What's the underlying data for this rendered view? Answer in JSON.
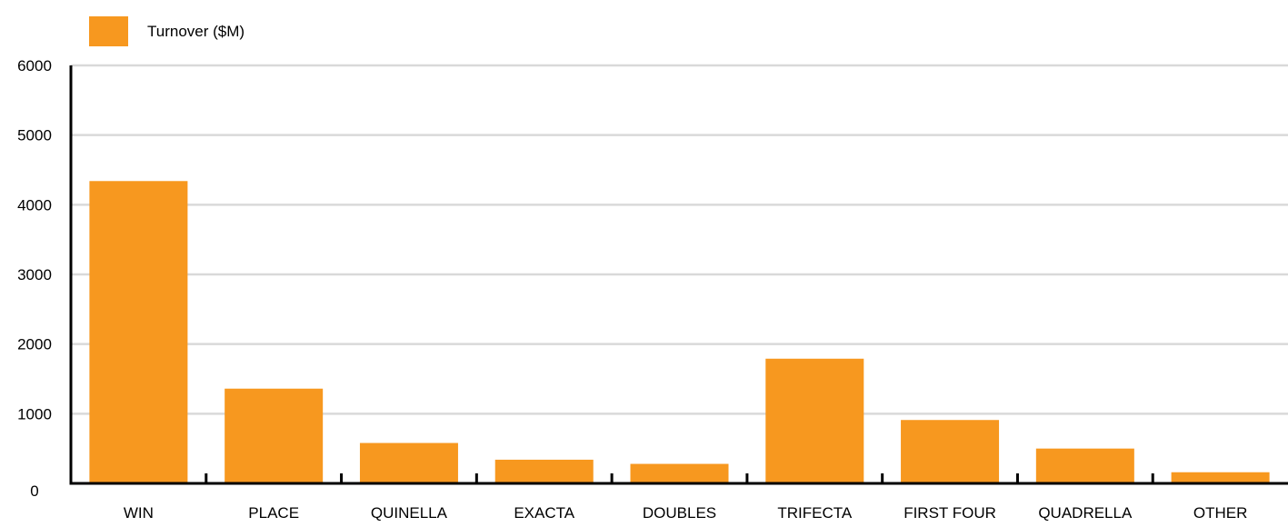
{
  "chart_data": {
    "type": "bar",
    "categories": [
      "WIN",
      "PLACE",
      "QUINELLA",
      "EXACTA",
      "DOUBLES",
      "TRIFECTA",
      "FIRST FOUR",
      "QUADRELLA",
      "OTHER"
    ],
    "series": [
      {
        "name": "Turnover ($M)",
        "values": [
          4340,
          1360,
          580,
          340,
          280,
          1790,
          910,
          500,
          160
        ]
      }
    ],
    "yticks": [
      "0",
      "1000",
      "2000",
      "3000",
      "4000",
      "5000",
      "6000"
    ],
    "ylim": [
      0,
      6000
    ],
    "xlabel": "",
    "ylabel": "",
    "grid": true,
    "legend_position": "top-left",
    "colors": {
      "bar": "#F7981F",
      "grid": "#D9D9D9",
      "axis": "#000000"
    }
  }
}
